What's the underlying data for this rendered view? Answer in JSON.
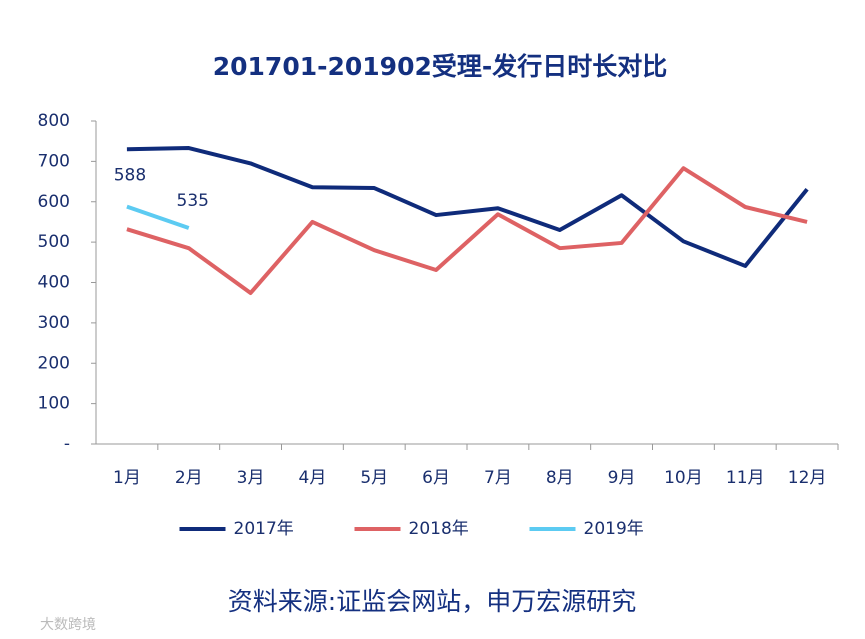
{
  "chart_data": {
    "type": "line",
    "title": "201701-201902受理-发行日时长对比",
    "categories": [
      "1月",
      "2月",
      "3月",
      "4月",
      "5月",
      "6月",
      "7月",
      "8月",
      "9月",
      "10月",
      "11月",
      "12月"
    ],
    "series": [
      {
        "name": "2017年",
        "color": "#0f2b7a",
        "values": [
          730,
          733,
          695,
          636,
          634,
          567,
          584,
          530,
          616,
          502,
          441,
          631
        ]
      },
      {
        "name": "2018年",
        "color": "#de6264",
        "values": [
          532,
          485,
          374,
          550,
          480,
          431,
          569,
          485,
          498,
          683,
          587,
          550
        ]
      },
      {
        "name": "2019年",
        "color": "#5ccbf2",
        "values": [
          588,
          535,
          null,
          null,
          null,
          null,
          null,
          null,
          null,
          null,
          null,
          null
        ],
        "data_labels": true
      }
    ],
    "ylim": [
      0,
      800
    ],
    "yticks": [
      {
        "value": 0,
        "label": "-"
      },
      100,
      200,
      300,
      400,
      500,
      600,
      700,
      800
    ],
    "grid": false,
    "legend": "bottom",
    "source": "资料来源:证监会网站，申万宏源研究",
    "watermark": "大数跨境"
  }
}
